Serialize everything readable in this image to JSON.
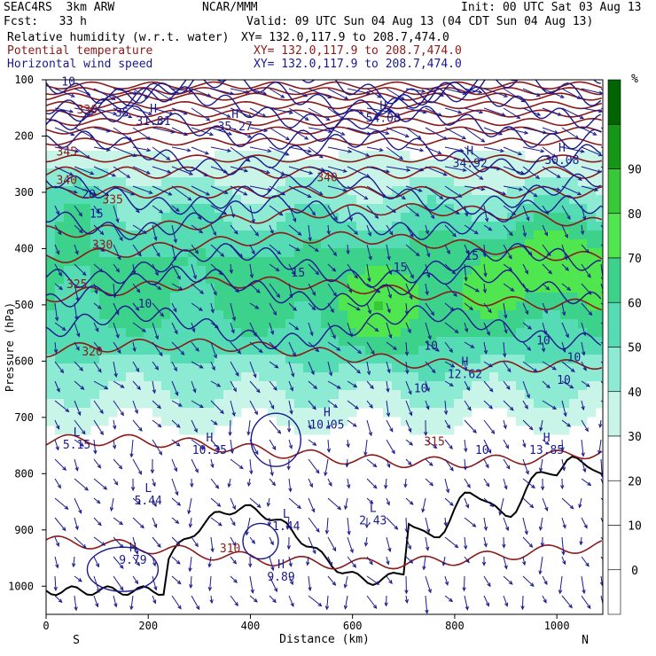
{
  "header": {
    "project_model": "SEAC4RS  3km ARW",
    "institution": "NCAR/MMM",
    "init": "Init: 00 UTC Sat 03 Aug 13",
    "fcst": "Fcst:   33 h",
    "valid": "Valid: 09 UTC Sun 04 Aug 13 (04 CDT Sun 04 Aug 13)",
    "fields": [
      {
        "label": "Relative humidity (w.r.t. water)",
        "xy": "XY= 132.0,117.9 to 208.7,474.0",
        "color": "#000000"
      },
      {
        "label": "Potential temperature",
        "xy": "XY= 132.0,117.9 to 208.7,474.0",
        "color": "#8b1a1a"
      },
      {
        "label": "Horizontal wind speed",
        "xy": "XY= 132.0,117.9 to 208.7,474.0",
        "color": "#1a1a8c"
      }
    ]
  },
  "colorbar": {
    "unit": "%",
    "ticks": [
      "0",
      "10",
      "20",
      "30",
      "40",
      "50",
      "60",
      "70",
      "80",
      "90"
    ],
    "colors": [
      "#ffffff",
      "#ffffff",
      "#ffffff",
      "#ffffff",
      "#c8f5e8",
      "#8cebd2",
      "#55dcb4",
      "#3cd28c",
      "#50e650",
      "#38c838",
      "#169616",
      "#006400"
    ]
  },
  "chart_data": {
    "type": "cross-section",
    "ylabel": "Pressure (hPa)",
    "xlabel": "Distance (km)",
    "x_ticks": [
      "0",
      "200",
      "400",
      "600",
      "800",
      "1000"
    ],
    "y_ticks": [
      "100",
      "200",
      "300",
      "400",
      "500",
      "600",
      "700",
      "800",
      "900",
      "1000"
    ],
    "xlim": [
      0,
      1090
    ],
    "ylim": [
      100,
      1050
    ],
    "end_labels": {
      "left": "S",
      "right": "N"
    },
    "theta_labels": [
      {
        "text": "330",
        "x": 60,
        "p": 160
      },
      {
        "text": "345",
        "x": 20,
        "p": 235
      },
      {
        "text": "340",
        "x": 20,
        "p": 285
      },
      {
        "text": "335",
        "x": 110,
        "p": 320
      },
      {
        "text": "330",
        "x": 90,
        "p": 400
      },
      {
        "text": "325",
        "x": 40,
        "p": 470
      },
      {
        "text": "320",
        "x": 70,
        "p": 590
      },
      {
        "text": "340",
        "x": 530,
        "p": 280
      },
      {
        "text": "315",
        "x": 740,
        "p": 750
      },
      {
        "text": "310",
        "x": 340,
        "p": 940
      }
    ],
    "speed_labels": [
      {
        "text": "10",
        "x": 30,
        "p": 110
      },
      {
        "text": "35",
        "x": 135,
        "p": 165
      },
      {
        "text": "20",
        "x": 70,
        "p": 310
      },
      {
        "text": "15",
        "x": 85,
        "p": 345
      },
      {
        "text": "15",
        "x": 480,
        "p": 450
      },
      {
        "text": "15",
        "x": 680,
        "p": 440
      },
      {
        "text": "15",
        "x": 820,
        "p": 420
      },
      {
        "text": "10",
        "x": 180,
        "p": 505
      },
      {
        "text": "10",
        "x": 740,
        "p": 580
      },
      {
        "text": "10",
        "x": 720,
        "p": 655
      },
      {
        "text": "10",
        "x": 960,
        "p": 570
      },
      {
        "text": "10",
        "x": 1020,
        "p": 600
      },
      {
        "text": "10",
        "x": 1000,
        "p": 640
      },
      {
        "text": "10",
        "x": 840,
        "p": 765
      }
    ],
    "extrema": [
      {
        "kind": "H",
        "x": 660,
        "p": 175,
        "value": "54.08"
      },
      {
        "kind": "H",
        "x": 830,
        "p": 255,
        "value": "34.92"
      },
      {
        "kind": "H",
        "x": 1010,
        "p": 250,
        "value": "30.08"
      },
      {
        "kind": "H",
        "x": 210,
        "p": 180,
        "value": "31.81"
      },
      {
        "kind": "H",
        "x": 370,
        "p": 190,
        "value": "35.27"
      },
      {
        "kind": "L",
        "x": 60,
        "p": 755,
        "value": "5.15"
      },
      {
        "kind": "H",
        "x": 820,
        "p": 630,
        "value": "12.62"
      },
      {
        "kind": "H",
        "x": 550,
        "p": 720,
        "value": "10.05"
      },
      {
        "kind": "H",
        "x": 320,
        "p": 765,
        "value": "10.35"
      },
      {
        "kind": "H",
        "x": 980,
        "p": 765,
        "value": "13.85"
      },
      {
        "kind": "L",
        "x": 200,
        "p": 855,
        "value": "5.44"
      },
      {
        "kind": "L",
        "x": 470,
        "p": 900,
        "value": "1.44"
      },
      {
        "kind": "L",
        "x": 640,
        "p": 890,
        "value": "2.43"
      },
      {
        "kind": "H",
        "x": 170,
        "p": 960,
        "value": "9.79"
      },
      {
        "kind": "H",
        "x": 460,
        "p": 990,
        "value": "9.89"
      }
    ]
  }
}
